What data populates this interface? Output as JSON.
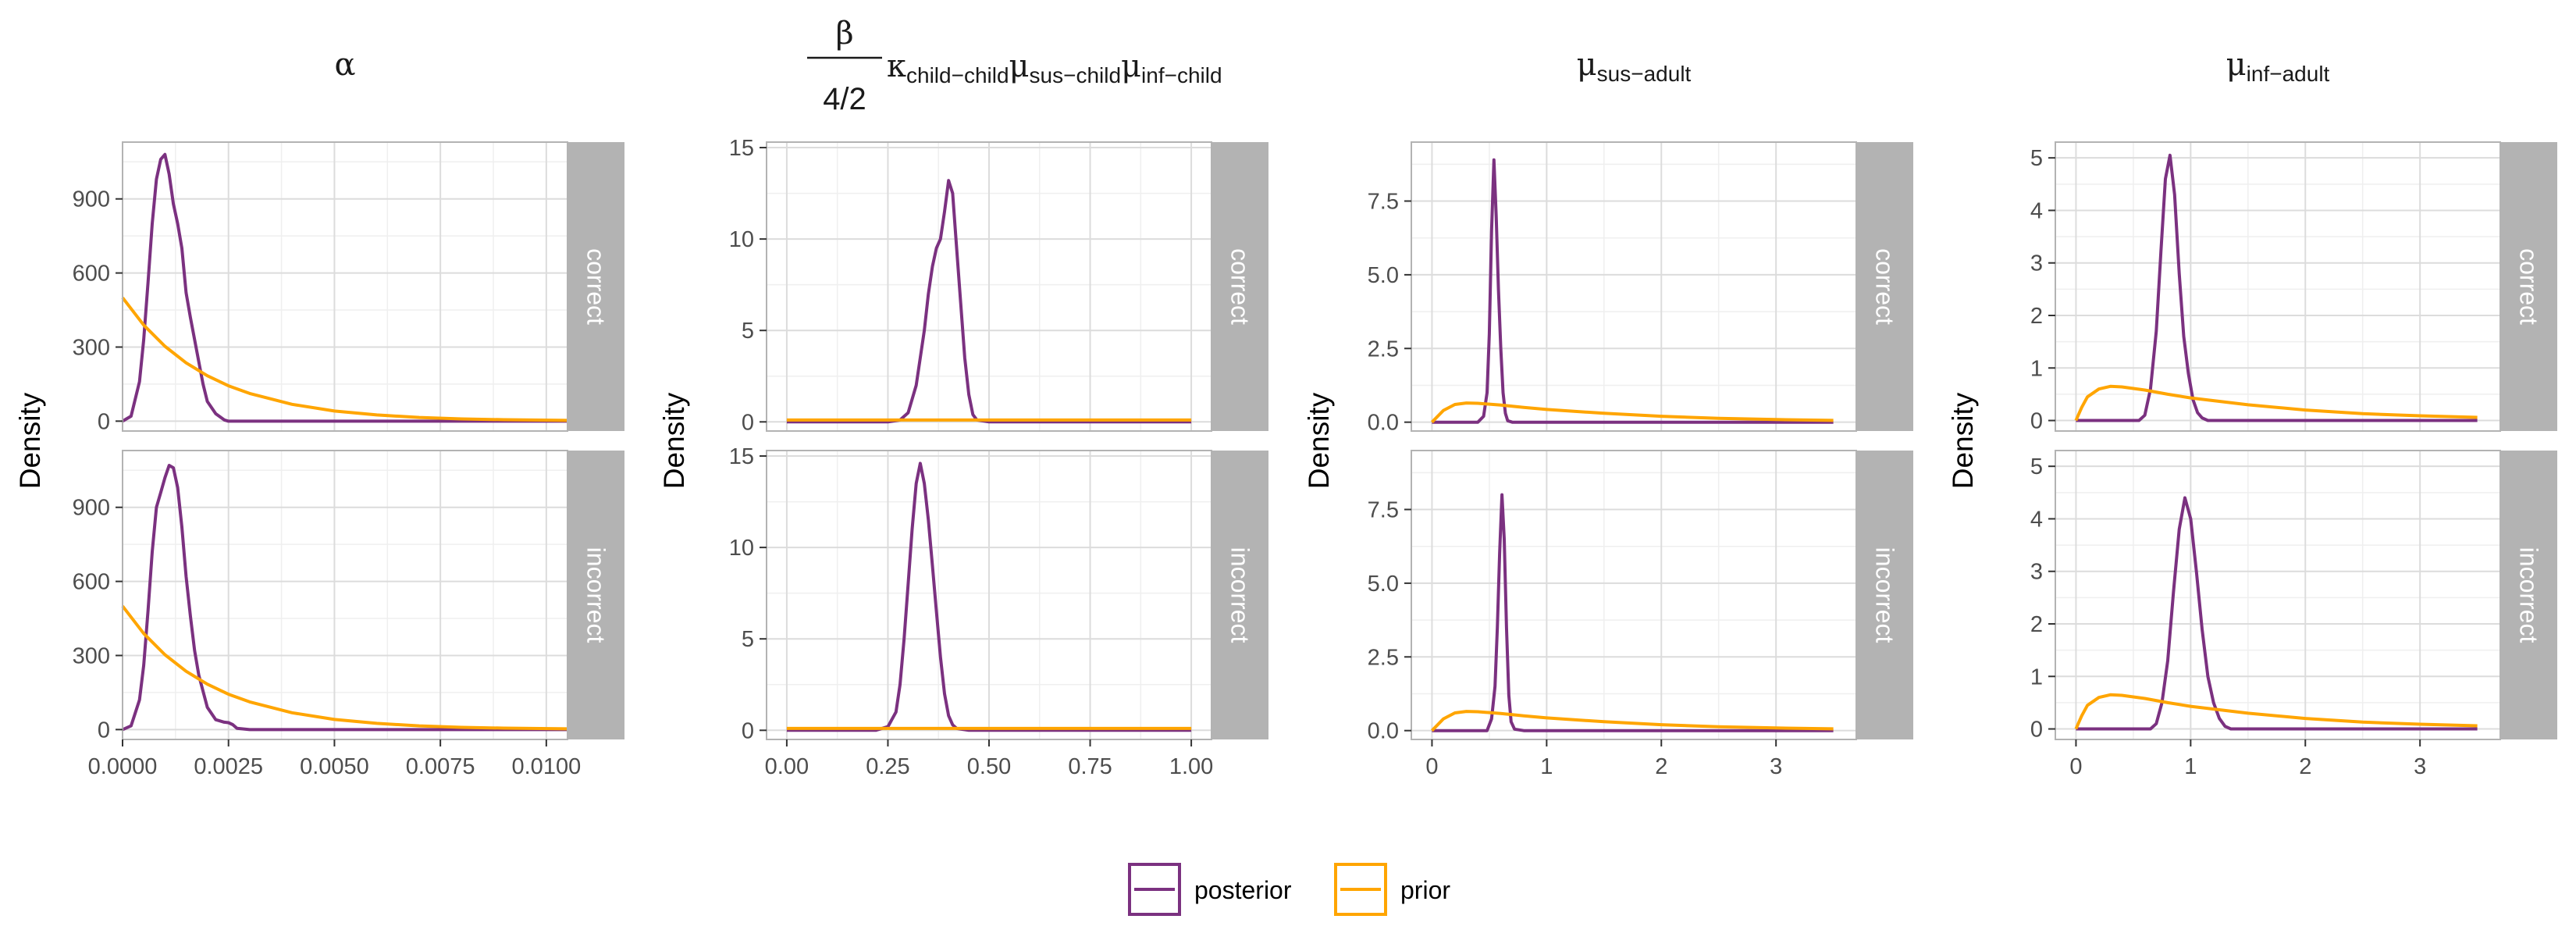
{
  "colors": {
    "posterior": "#7b3180",
    "prior": "#ffa500",
    "strip_bg": "#b3b3b3",
    "panel_border": "#b3b3b3",
    "grid_major": "#dcdcdc",
    "grid_minor": "#efefef"
  },
  "facets": {
    "rows": [
      "correct",
      "incorrect"
    ],
    "ylabel": "Density"
  },
  "legend": {
    "position": "bottom",
    "items": [
      {
        "key": "posterior",
        "label": "posterior"
      },
      {
        "key": "prior",
        "label": "prior"
      }
    ]
  },
  "chart_data": [
    {
      "type": "line",
      "title": "α",
      "title_style": "alpha",
      "xlim": [
        0,
        0.0105
      ],
      "xticks": [
        0,
        0.0025,
        0.005,
        0.0075,
        0.01
      ],
      "xticklabels": [
        "0.0000",
        "0.0025",
        "0.0050",
        "0.0075",
        "0.0100"
      ],
      "ylim": [
        -40,
        1130
      ],
      "yticks": [
        0,
        300,
        600,
        900
      ],
      "yticklabels": [
        "0",
        "300",
        "600",
        "900"
      ],
      "grid": true,
      "panels": [
        {
          "row": "correct",
          "series": [
            {
              "name": "posterior",
              "x": [
                0,
                0.0002,
                0.0004,
                0.0005,
                0.0006,
                0.0007,
                0.0008,
                0.0009,
                0.001,
                0.0011,
                0.0012,
                0.0013,
                0.0014,
                0.0015,
                0.0016,
                0.0017,
                0.0018,
                0.0019,
                0.002,
                0.0022,
                0.0024,
                0.0025,
                0.003,
                0.006,
                0.0105
              ],
              "y": [
                0,
                20,
                160,
                330,
                560,
                800,
                980,
                1060,
                1080,
                1000,
                880,
                800,
                700,
                520,
                420,
                330,
                240,
                150,
                80,
                30,
                5,
                0,
                0,
                0,
                0
              ]
            },
            {
              "name": "prior",
              "x": [
                0,
                0.0005,
                0.001,
                0.0015,
                0.002,
                0.0025,
                0.003,
                0.004,
                0.005,
                0.006,
                0.007,
                0.008,
                0.009,
                0.0105
              ],
              "y": [
                500,
                389,
                303,
                236,
                184,
                143,
                112,
                68,
                41,
                25,
                15,
                9,
                6,
                3
              ]
            }
          ]
        },
        {
          "row": "incorrect",
          "series": [
            {
              "name": "posterior",
              "x": [
                0,
                0.0002,
                0.0004,
                0.0005,
                0.0006,
                0.0007,
                0.0008,
                0.0009,
                0.001,
                0.0011,
                0.0012,
                0.0013,
                0.0014,
                0.0015,
                0.0016,
                0.0017,
                0.0018,
                0.002,
                0.0022,
                0.0024,
                0.0025,
                0.0026,
                0.0027,
                0.003,
                0.006,
                0.0105
              ],
              "y": [
                0,
                15,
                120,
                260,
                480,
                720,
                900,
                960,
                1020,
                1070,
                1060,
                980,
                820,
                620,
                460,
                320,
                220,
                90,
                40,
                30,
                28,
                20,
                5,
                0,
                0,
                0
              ]
            },
            {
              "name": "prior",
              "x": [
                0,
                0.0005,
                0.001,
                0.0015,
                0.002,
                0.0025,
                0.003,
                0.004,
                0.005,
                0.006,
                0.007,
                0.008,
                0.009,
                0.0105
              ],
              "y": [
                500,
                389,
                303,
                236,
                184,
                143,
                112,
                68,
                41,
                25,
                15,
                9,
                6,
                3
              ]
            }
          ]
        }
      ]
    },
    {
      "type": "line",
      "title": "β/(4/2) κ child-child μ sus-child μ inf-child",
      "title_style": "beta",
      "title_parts": {
        "numerator": "β",
        "denominator": "4/2",
        "kappa_sub": "child−child",
        "mu1_sub": "sus−child",
        "mu2_sub": "inf−child",
        "kappa": "κ",
        "mu": "μ"
      },
      "xlim": [
        -0.05,
        1.05
      ],
      "xticks": [
        0,
        0.25,
        0.5,
        0.75,
        1
      ],
      "xticklabels": [
        "0.00",
        "0.25",
        "0.50",
        "0.75",
        "1.00"
      ],
      "ylim": [
        -0.5,
        15.3
      ],
      "yticks": [
        0,
        5,
        10,
        15
      ],
      "yticklabels": [
        "0",
        "5",
        "10",
        "15"
      ],
      "grid": true,
      "panels": [
        {
          "row": "correct",
          "series": [
            {
              "name": "posterior",
              "x": [
                0,
                0.25,
                0.28,
                0.3,
                0.32,
                0.34,
                0.35,
                0.36,
                0.37,
                0.38,
                0.39,
                0.4,
                0.41,
                0.42,
                0.43,
                0.44,
                0.45,
                0.46,
                0.47,
                0.5,
                1
              ],
              "y": [
                0,
                0,
                0.1,
                0.5,
                2,
                5,
                7,
                8.5,
                9.5,
                10,
                11.5,
                13.2,
                12.5,
                9.5,
                6.5,
                3.5,
                1.5,
                0.4,
                0.1,
                0,
                0
              ]
            },
            {
              "name": "prior",
              "x": [
                0,
                1
              ],
              "y": [
                0.1,
                0.1
              ]
            }
          ]
        },
        {
          "row": "incorrect",
          "series": [
            {
              "name": "posterior",
              "x": [
                0,
                0.22,
                0.25,
                0.27,
                0.28,
                0.29,
                0.3,
                0.31,
                0.32,
                0.33,
                0.34,
                0.35,
                0.36,
                0.37,
                0.38,
                0.39,
                0.4,
                0.41,
                0.42,
                0.45,
                1
              ],
              "y": [
                0,
                0,
                0.2,
                1,
                2.5,
                5,
                8,
                11,
                13.5,
                14.6,
                13.5,
                11.5,
                9,
                6.5,
                4,
                2,
                0.8,
                0.3,
                0.1,
                0,
                0
              ]
            },
            {
              "name": "prior",
              "x": [
                0,
                1
              ],
              "y": [
                0.1,
                0.1
              ]
            }
          ]
        }
      ]
    },
    {
      "type": "line",
      "title": "μ sus-adult",
      "title_style": "mu",
      "title_parts": {
        "mu": "μ",
        "sub": "sus−adult"
      },
      "xlim": [
        -0.18,
        3.7
      ],
      "xticks": [
        0,
        1,
        2,
        3
      ],
      "xticklabels": [
        "0",
        "1",
        "2",
        "3"
      ],
      "ylim": [
        -0.3,
        9.5
      ],
      "yticks": [
        0,
        2.5,
        5,
        7.5
      ],
      "yticklabels": [
        "0.0",
        "2.5",
        "5.0",
        "7.5"
      ],
      "grid": true,
      "panels": [
        {
          "row": "correct",
          "series": [
            {
              "name": "posterior",
              "x": [
                0,
                0.4,
                0.45,
                0.48,
                0.5,
                0.52,
                0.54,
                0.56,
                0.58,
                0.6,
                0.62,
                0.64,
                0.66,
                0.7,
                0.8,
                3.5
              ],
              "y": [
                0,
                0,
                0.2,
                1,
                3,
                6.5,
                8.9,
                7,
                4.5,
                2.5,
                1,
                0.3,
                0.05,
                0,
                0,
                0
              ]
            },
            {
              "name": "prior",
              "x": [
                0,
                0.1,
                0.2,
                0.3,
                0.4,
                0.6,
                0.8,
                1,
                1.5,
                2,
                2.5,
                3,
                3.5
              ],
              "y": [
                0,
                0.4,
                0.6,
                0.65,
                0.64,
                0.58,
                0.5,
                0.43,
                0.3,
                0.2,
                0.13,
                0.09,
                0.06
              ]
            }
          ]
        },
        {
          "row": "incorrect",
          "series": [
            {
              "name": "posterior",
              "x": [
                0,
                0.48,
                0.52,
                0.55,
                0.57,
                0.59,
                0.61,
                0.63,
                0.65,
                0.67,
                0.69,
                0.72,
                0.8,
                3.5
              ],
              "y": [
                0,
                0,
                0.4,
                1.5,
                3.5,
                6,
                8,
                6.5,
                3.5,
                1.2,
                0.3,
                0.05,
                0,
                0
              ]
            },
            {
              "name": "prior",
              "x": [
                0,
                0.1,
                0.2,
                0.3,
                0.4,
                0.6,
                0.8,
                1,
                1.5,
                2,
                2.5,
                3,
                3.5
              ],
              "y": [
                0,
                0.4,
                0.6,
                0.65,
                0.64,
                0.58,
                0.5,
                0.43,
                0.3,
                0.2,
                0.13,
                0.09,
                0.06
              ]
            }
          ]
        }
      ]
    },
    {
      "type": "line",
      "title": "μ inf-adult",
      "title_style": "mu",
      "title_parts": {
        "mu": "μ",
        "sub": "inf−adult"
      },
      "xlim": [
        -0.18,
        3.7
      ],
      "xticks": [
        0,
        1,
        2,
        3
      ],
      "xticklabels": [
        "0",
        "1",
        "2",
        "3"
      ],
      "ylim": [
        -0.2,
        5.3
      ],
      "yticks": [
        0,
        1,
        2,
        3,
        4,
        5
      ],
      "yticklabels": [
        "0",
        "1",
        "2",
        "3",
        "4",
        "5"
      ],
      "grid": true,
      "panels": [
        {
          "row": "correct",
          "series": [
            {
              "name": "posterior",
              "x": [
                0,
                0.55,
                0.6,
                0.65,
                0.7,
                0.74,
                0.78,
                0.82,
                0.86,
                0.9,
                0.94,
                0.98,
                1.02,
                1.06,
                1.1,
                1.15,
                1.2,
                3.5
              ],
              "y": [
                0,
                0,
                0.1,
                0.6,
                1.7,
                3.2,
                4.6,
                5.05,
                4.3,
                2.8,
                1.6,
                0.9,
                0.4,
                0.15,
                0.05,
                0,
                0,
                0
              ]
            },
            {
              "name": "prior",
              "x": [
                0,
                0.05,
                0.1,
                0.2,
                0.3,
                0.4,
                0.6,
                0.8,
                1,
                1.5,
                2,
                2.5,
                3,
                3.5
              ],
              "y": [
                0,
                0.25,
                0.45,
                0.6,
                0.65,
                0.64,
                0.58,
                0.5,
                0.43,
                0.3,
                0.2,
                0.13,
                0.09,
                0.06
              ]
            }
          ]
        },
        {
          "row": "incorrect",
          "series": [
            {
              "name": "posterior",
              "x": [
                0,
                0.65,
                0.7,
                0.75,
                0.8,
                0.85,
                0.9,
                0.95,
                1,
                1.05,
                1.1,
                1.15,
                1.2,
                1.25,
                1.3,
                1.35,
                3.5
              ],
              "y": [
                0,
                0,
                0.1,
                0.5,
                1.3,
                2.6,
                3.8,
                4.4,
                4,
                3,
                1.9,
                1.0,
                0.5,
                0.2,
                0.05,
                0,
                0
              ]
            },
            {
              "name": "prior",
              "x": [
                0,
                0.05,
                0.1,
                0.2,
                0.3,
                0.4,
                0.6,
                0.8,
                1,
                1.5,
                2,
                2.5,
                3,
                3.5
              ],
              "y": [
                0,
                0.25,
                0.45,
                0.6,
                0.65,
                0.64,
                0.58,
                0.5,
                0.43,
                0.3,
                0.2,
                0.13,
                0.09,
                0.06
              ]
            }
          ]
        }
      ]
    }
  ]
}
